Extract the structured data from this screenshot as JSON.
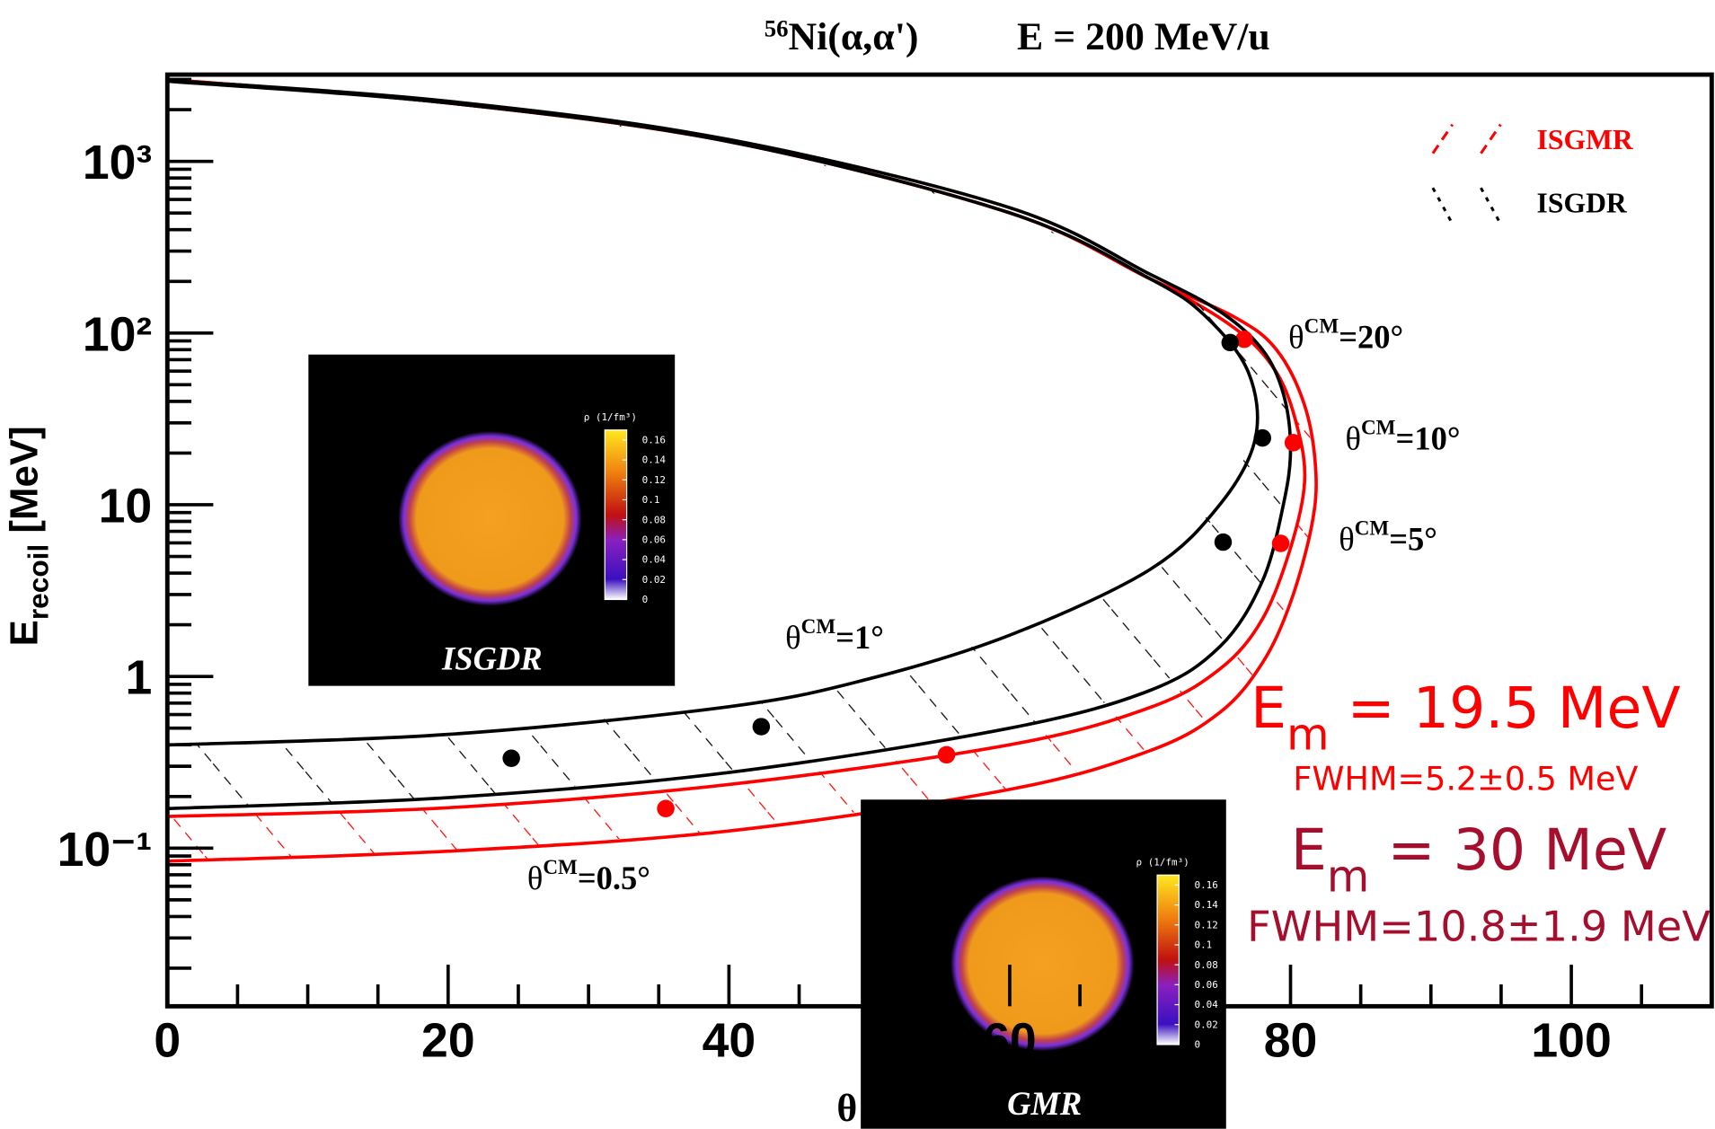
{
  "chart_data": {
    "type": "line",
    "title_mass": "56",
    "title": "Ni(α,α')",
    "subtitle": "E = 200 MeV/u",
    "xlabel": "θ",
    "ylabel": {
      "main": "E",
      "sub": "recoil",
      "rest": " [MeV]"
    },
    "xlim": [
      0,
      110
    ],
    "ylim": [
      0.012,
      3200
    ],
    "log_y": true,
    "xticks": [
      0,
      20,
      40,
      60,
      80,
      100
    ],
    "yticks": [
      {
        "value": 0.1,
        "label": "10⁻¹"
      },
      1,
      10,
      {
        "value": 100,
        "label": "10²"
      },
      {
        "value": 1000,
        "label": "10³"
      }
    ],
    "legend": "upper right",
    "series": [
      {
        "name": "ISGMR",
        "color": "#ff0000",
        "boundaries": [
          {
            "x": [
              0,
              20,
              40,
              60,
              70,
              76,
              79,
              80.5,
              81,
              80,
              78,
              75,
              70,
              60,
              40,
              20,
              0
            ],
            "values": [
              3000,
              2186,
              1303,
              501,
              207,
              107,
              59,
              28,
              13.5,
              5.6,
              2.16,
              1.11,
              0.66,
              0.4,
              0.235,
              0.172,
              0.153
            ]
          },
          {
            "x": [
              0,
              20,
              40,
              60,
              70,
              76,
              79,
              81,
              81.8,
              81.5,
              80,
              78,
              75,
              70,
              60,
              40,
              20,
              0
            ],
            "values": [
              3000,
              2186,
              1303,
              501,
              207,
              124,
              80,
              38,
              15.8,
              7.5,
              2.7,
              1.2,
              0.62,
              0.37,
              0.22,
              0.126,
              0.096,
              0.084
            ]
          }
        ],
        "points": {
          "x": [
            76.7,
            80.2,
            79.3,
            55.5,
            35.5
          ],
          "values": [
            92,
            23,
            5.96,
            0.35,
            0.17
          ]
        }
      },
      {
        "name": "ISGDR",
        "color": "#000000",
        "boundaries": [
          {
            "x": [
              0,
              20,
              40,
              60,
              70,
              74,
              77,
              77.5,
              75,
              70,
              60,
              50,
              40,
              20,
              0
            ],
            "values": [
              2927,
              2186,
              1303,
              501,
              207,
              124,
              59,
              24.5,
              10.1,
              4.2,
              1.74,
              0.97,
              0.667,
              0.46,
              0.399
            ]
          },
          {
            "x": [
              0,
              20,
              40,
              60,
              70,
              75,
              78,
              79.5,
              80,
              79.5,
              78,
              75,
              70,
              60,
              40,
              20,
              0
            ],
            "values": [
              2970,
              2240,
              1340,
              537,
              220,
              133,
              80,
              44,
              21.1,
              10.1,
              3.6,
              1.5,
              0.83,
              0.5,
              0.276,
              0.197,
              0.17
            ]
          }
        ],
        "points": {
          "x": [
            75.7,
            78,
            75.2,
            42.3,
            24.5
          ],
          "values": [
            88,
            24.5,
            6.06,
            0.51,
            0.334
          ]
        }
      }
    ],
    "annotations": [
      {
        "text": "θ",
        "sup": "CM",
        "rest": "=20°"
      },
      {
        "text": "θ",
        "sup": "CM",
        "rest": "=10°"
      },
      {
        "text": "θ",
        "sup": "CM",
        "rest": "=5°"
      },
      {
        "text": "θ",
        "sup": "CM",
        "rest": "=1°"
      },
      {
        "text": "θ",
        "sup": "CM",
        "rest": "=0.5°"
      }
    ],
    "results": [
      {
        "main": "E",
        "sub": "m",
        "rest": " = 19.5 MeV",
        "width": "FWHM=5.2±0.5 MeV",
        "color": "#ff0000"
      },
      {
        "main": "E",
        "sub": "m",
        "rest": " = 30 MeV",
        "width": "FWHM=10.8±1.9 MeV",
        "color": "#a50f2d"
      }
    ]
  },
  "insets": [
    {
      "label": "ISGDR",
      "colorbar_title": "ρ (1/fm³)",
      "colorbar_lim": [
        0,
        0.17
      ],
      "colorbar_ticks": [
        0.16,
        0.14,
        0.12,
        0.1,
        0.08,
        0.06,
        0.04,
        0.02,
        0
      ]
    },
    {
      "label": "GMR",
      "colorbar_title": "ρ (1/fm³)",
      "colorbar_lim": [
        0,
        0.17
      ],
      "colorbar_ticks": [
        0.16,
        0.14,
        0.12,
        0.1,
        0.08,
        0.06,
        0.04,
        0.02,
        0
      ]
    }
  ]
}
